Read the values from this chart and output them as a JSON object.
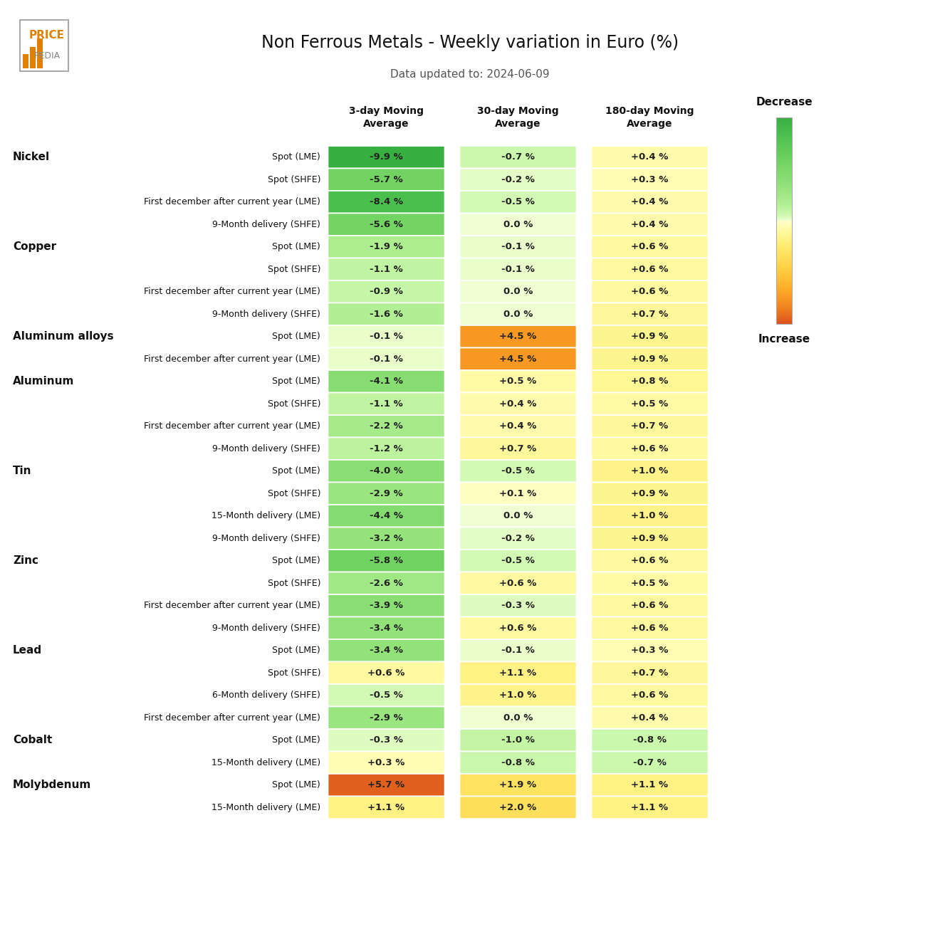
{
  "title": "Non Ferrous Metals - Weekly variation in Euro (%)",
  "subtitle": "Data updated to: 2024-06-09",
  "col_headers": [
    "3-day Moving\nAverage",
    "30-day Moving\nAverage",
    "180-day Moving\nAverage"
  ],
  "rows": [
    {
      "metal": "Nickel",
      "label": "Spot (LME)",
      "values": [
        -9.9,
        -0.7,
        0.4
      ],
      "texts": [
        "-9.9 %",
        "-0.7 %",
        "+0.4 %"
      ]
    },
    {
      "metal": "",
      "label": "Spot (SHFE)",
      "values": [
        -5.7,
        -0.2,
        0.3
      ],
      "texts": [
        "-5.7 %",
        "-0.2 %",
        "+0.3 %"
      ]
    },
    {
      "metal": "",
      "label": "First december after current year (LME)",
      "values": [
        -8.4,
        -0.5,
        0.4
      ],
      "texts": [
        "-8.4 %",
        "-0.5 %",
        "+0.4 %"
      ]
    },
    {
      "metal": "",
      "label": "9-Month delivery (SHFE)",
      "values": [
        -5.6,
        0.0,
        0.4
      ],
      "texts": [
        "-5.6 %",
        "0.0 %",
        "+0.4 %"
      ]
    },
    {
      "metal": "Copper",
      "label": "Spot (LME)",
      "values": [
        -1.9,
        -0.1,
        0.6
      ],
      "texts": [
        "-1.9 %",
        "-0.1 %",
        "+0.6 %"
      ]
    },
    {
      "metal": "",
      "label": "Spot (SHFE)",
      "values": [
        -1.1,
        -0.1,
        0.6
      ],
      "texts": [
        "-1.1 %",
        "-0.1 %",
        "+0.6 %"
      ]
    },
    {
      "metal": "",
      "label": "First december after current year (LME)",
      "values": [
        -0.9,
        0.0,
        0.6
      ],
      "texts": [
        "-0.9 %",
        "0.0 %",
        "+0.6 %"
      ]
    },
    {
      "metal": "",
      "label": "9-Month delivery (SHFE)",
      "values": [
        -1.6,
        0.0,
        0.7
      ],
      "texts": [
        "-1.6 %",
        "0.0 %",
        "+0.7 %"
      ]
    },
    {
      "metal": "Aluminum alloys",
      "label": "Spot (LME)",
      "values": [
        -0.1,
        4.5,
        0.9
      ],
      "texts": [
        "-0.1 %",
        "+4.5 %",
        "+0.9 %"
      ]
    },
    {
      "metal": "",
      "label": "First december after current year (LME)",
      "values": [
        -0.1,
        4.5,
        0.9
      ],
      "texts": [
        "-0.1 %",
        "+4.5 %",
        "+0.9 %"
      ]
    },
    {
      "metal": "Aluminum",
      "label": "Spot (LME)",
      "values": [
        -4.1,
        0.5,
        0.8
      ],
      "texts": [
        "-4.1 %",
        "+0.5 %",
        "+0.8 %"
      ]
    },
    {
      "metal": "",
      "label": "Spot (SHFE)",
      "values": [
        -1.1,
        0.4,
        0.5
      ],
      "texts": [
        "-1.1 %",
        "+0.4 %",
        "+0.5 %"
      ]
    },
    {
      "metal": "",
      "label": "First december after current year (LME)",
      "values": [
        -2.2,
        0.4,
        0.7
      ],
      "texts": [
        "-2.2 %",
        "+0.4 %",
        "+0.7 %"
      ]
    },
    {
      "metal": "",
      "label": "9-Month delivery (SHFE)",
      "values": [
        -1.2,
        0.7,
        0.6
      ],
      "texts": [
        "-1.2 %",
        "+0.7 %",
        "+0.6 %"
      ]
    },
    {
      "metal": "Tin",
      "label": "Spot (LME)",
      "values": [
        -4.0,
        -0.5,
        1.0
      ],
      "texts": [
        "-4.0 %",
        "-0.5 %",
        "+1.0 %"
      ]
    },
    {
      "metal": "",
      "label": "Spot (SHFE)",
      "values": [
        -2.9,
        0.1,
        0.9
      ],
      "texts": [
        "-2.9 %",
        "+0.1 %",
        "+0.9 %"
      ]
    },
    {
      "metal": "",
      "label": "15-Month delivery (LME)",
      "values": [
        -4.4,
        0.0,
        1.0
      ],
      "texts": [
        "-4.4 %",
        "0.0 %",
        "+1.0 %"
      ]
    },
    {
      "metal": "",
      "label": "9-Month delivery (SHFE)",
      "values": [
        -3.2,
        -0.2,
        0.9
      ],
      "texts": [
        "-3.2 %",
        "-0.2 %",
        "+0.9 %"
      ]
    },
    {
      "metal": "Zinc",
      "label": "Spot (LME)",
      "values": [
        -5.8,
        -0.5,
        0.6
      ],
      "texts": [
        "-5.8 %",
        "-0.5 %",
        "+0.6 %"
      ]
    },
    {
      "metal": "",
      "label": "Spot (SHFE)",
      "values": [
        -2.6,
        0.6,
        0.5
      ],
      "texts": [
        "-2.6 %",
        "+0.6 %",
        "+0.5 %"
      ]
    },
    {
      "metal": "",
      "label": "First december after current year (LME)",
      "values": [
        -3.9,
        -0.3,
        0.6
      ],
      "texts": [
        "-3.9 %",
        "-0.3 %",
        "+0.6 %"
      ]
    },
    {
      "metal": "",
      "label": "9-Month delivery (SHFE)",
      "values": [
        -3.4,
        0.6,
        0.6
      ],
      "texts": [
        "-3.4 %",
        "+0.6 %",
        "+0.6 %"
      ]
    },
    {
      "metal": "Lead",
      "label": "Spot (LME)",
      "values": [
        -3.4,
        -0.1,
        0.3
      ],
      "texts": [
        "-3.4 %",
        "-0.1 %",
        "+0.3 %"
      ]
    },
    {
      "metal": "",
      "label": "Spot (SHFE)",
      "values": [
        0.6,
        1.1,
        0.7
      ],
      "texts": [
        "+0.6 %",
        "+1.1 %",
        "+0.7 %"
      ]
    },
    {
      "metal": "",
      "label": "6-Month delivery (SHFE)",
      "values": [
        -0.5,
        1.0,
        0.6
      ],
      "texts": [
        "-0.5 %",
        "+1.0 %",
        "+0.6 %"
      ]
    },
    {
      "metal": "",
      "label": "First december after current year (LME)",
      "values": [
        -2.9,
        0.0,
        0.4
      ],
      "texts": [
        "-2.9 %",
        "0.0 %",
        "+0.4 %"
      ]
    },
    {
      "metal": "Cobalt",
      "label": "Spot (LME)",
      "values": [
        -0.3,
        -1.0,
        -0.8
      ],
      "texts": [
        "-0.3 %",
        "-1.0 %",
        "-0.8 %"
      ]
    },
    {
      "metal": "",
      "label": "15-Month delivery (LME)",
      "values": [
        0.3,
        -0.8,
        -0.7
      ],
      "texts": [
        "+0.3 %",
        "-0.8 %",
        "-0.7 %"
      ]
    },
    {
      "metal": "Molybdenum",
      "label": "Spot (LME)",
      "values": [
        5.7,
        1.9,
        1.1
      ],
      "texts": [
        "+5.7 %",
        "+1.9 %",
        "+1.1 %"
      ]
    },
    {
      "metal": "",
      "label": "15-Month delivery (LME)",
      "values": [
        1.1,
        2.0,
        1.1
      ],
      "texts": [
        "+1.1 %",
        "+2.0 %",
        "+1.1 %"
      ]
    }
  ],
  "background_color": "#ffffff",
  "fig_width": 13.2,
  "fig_height": 13.05,
  "dpi": 100
}
